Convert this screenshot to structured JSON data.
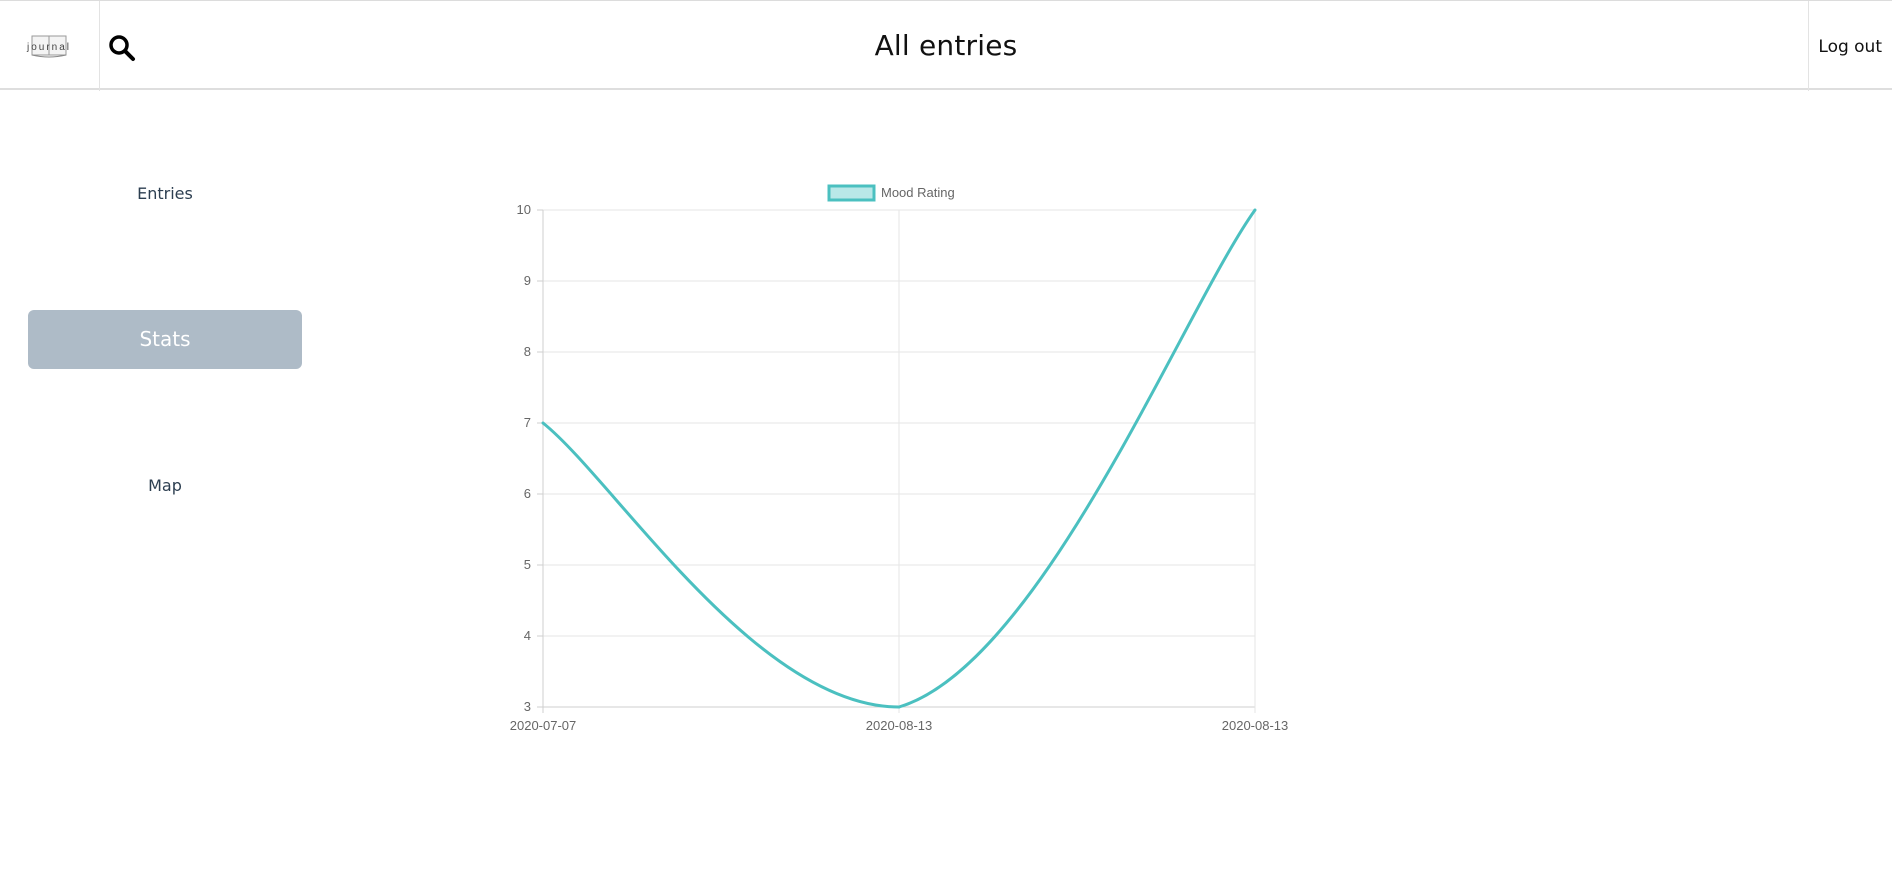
{
  "header": {
    "logo_text": "journal",
    "title": "All entries",
    "search_icon": "search-icon",
    "logout_label": "Log out"
  },
  "sidebar": {
    "items": [
      {
        "label": "Entries",
        "active": false
      },
      {
        "label": "Stats",
        "active": true
      },
      {
        "label": "Map",
        "active": false
      }
    ]
  },
  "colors": {
    "accent": "#4bc0c0",
    "accent_fill": "#b9e8e8",
    "active_nav": "#aebbc7",
    "grid": "#e6e6e6",
    "axis_text": "#666666"
  },
  "chart_data": {
    "type": "line",
    "title": "",
    "xlabel": "",
    "ylabel": "",
    "categories": [
      "2020-07-07",
      "2020-08-13",
      "2020-08-13"
    ],
    "series": [
      {
        "name": "Mood Rating",
        "values": [
          7,
          3,
          10
        ]
      }
    ],
    "ylim": [
      3,
      10
    ],
    "yticks": [
      3,
      4,
      5,
      6,
      7,
      8,
      9,
      10
    ],
    "grid": true,
    "legend": "top-center"
  }
}
